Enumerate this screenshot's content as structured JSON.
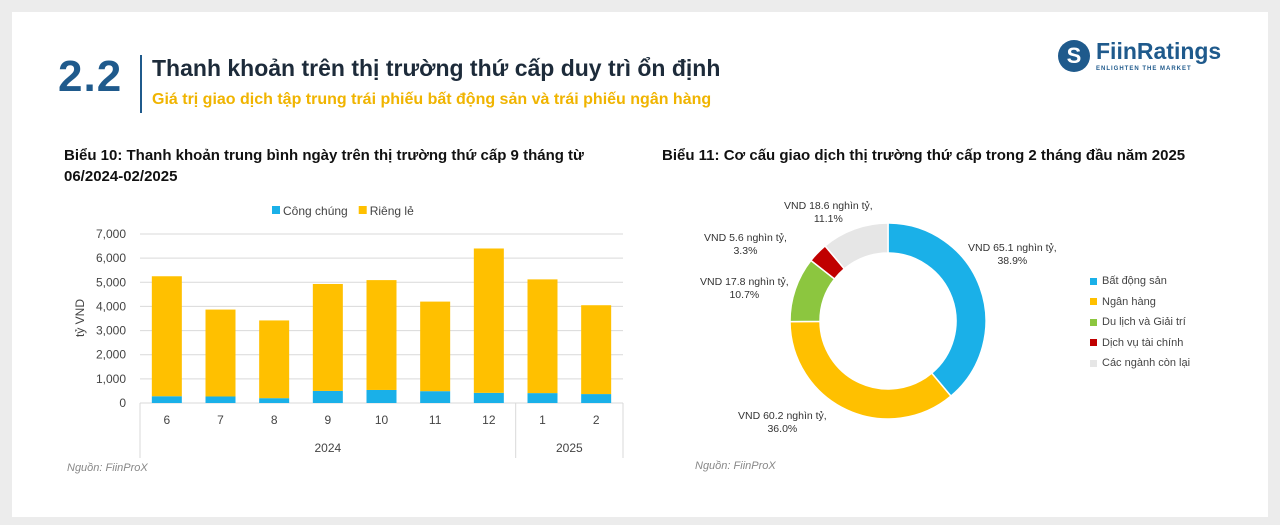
{
  "header": {
    "section_number": "2.2",
    "title": "Thanh khoản trên thị trường thứ cấp duy trì ổn định",
    "subtitle": "Giá trị giao dịch tập trung trái phiếu bất động sản và trái phiếu ngân hàng",
    "logo_name": "FiinRatings",
    "logo_tagline": "ENLIGHTEN THE MARKET"
  },
  "chart_data": [
    {
      "type": "bar",
      "stacked": true,
      "title": "Biểu 10: Thanh khoản trung bình ngày trên thị trường thứ cấp 9 tháng từ 06/2024-02/2025",
      "categories": [
        "6",
        "7",
        "8",
        "9",
        "10",
        "11",
        "12",
        "1",
        "2"
      ],
      "groups": [
        {
          "label": "2024",
          "count": 7
        },
        {
          "label": "2025",
          "count": 2
        }
      ],
      "series": [
        {
          "name": "Công chúng",
          "color": "#1ab0e8",
          "values": [
            280,
            270,
            200,
            500,
            540,
            490,
            420,
            410,
            370
          ]
        },
        {
          "name": "Riêng lẻ",
          "color": "#ffc000",
          "values": [
            4970,
            3600,
            3220,
            4430,
            4550,
            3710,
            5980,
            4710,
            3680
          ]
        }
      ],
      "ylabel": "tỷ VND",
      "ylim": [
        0,
        7000
      ],
      "yticks": [
        "0",
        "1,000",
        "2,000",
        "3,000",
        "4,000",
        "5,000",
        "6,000",
        "7,000"
      ],
      "grid": true,
      "legend": "top",
      "source": "Nguồn: FiinProX"
    },
    {
      "type": "pie",
      "donut": true,
      "title": "Biểu 11: Cơ cấu giao dịch thị trường thứ cấp trong 2 tháng đầu năm 2025",
      "slices": [
        {
          "name": "Bất động sản",
          "value": 65.1,
          "percent": 38.9,
          "color": "#1ab0e8",
          "label": "VND 65.1 nghìn tỷ,",
          "pct_label": "38.9%"
        },
        {
          "name": "Ngân hàng",
          "value": 60.2,
          "percent": 36.0,
          "color": "#ffc000",
          "label": "VND 60.2 nghìn tỷ,",
          "pct_label": "36.0%"
        },
        {
          "name": "Du lịch và Giải trí",
          "value": 17.8,
          "percent": 10.7,
          "color": "#8cc63f",
          "label": "VND 17.8 nghìn tỷ,",
          "pct_label": "10.7%"
        },
        {
          "name": "Dịch vụ tài chính",
          "value": 5.6,
          "percent": 3.3,
          "color": "#c00000",
          "label": "VND 5.6 nghìn tỷ,",
          "pct_label": "3.3%"
        },
        {
          "name": "Các ngành còn lại",
          "value": 18.6,
          "percent": 11.1,
          "color": "#e6e6e6",
          "label": "VND 18.6 nghìn tỷ,",
          "pct_label": "11.1%"
        }
      ],
      "legend": "right",
      "source": "Nguồn: FiinProX"
    }
  ]
}
